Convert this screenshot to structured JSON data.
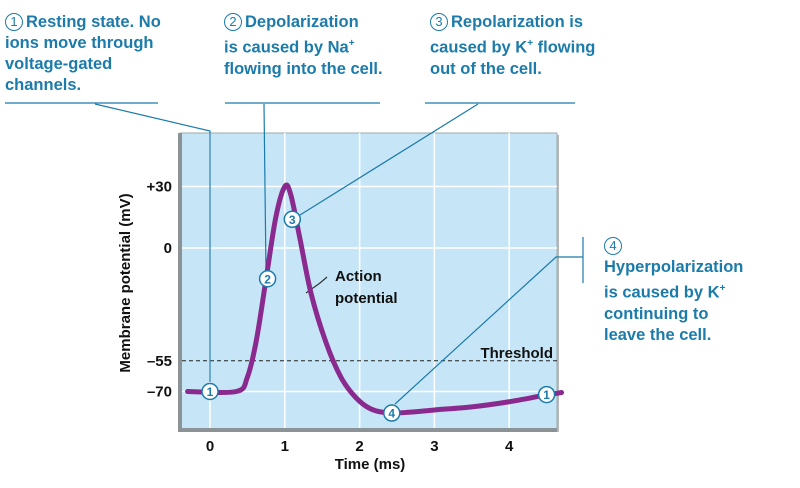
{
  "annotations": [
    {
      "number": "1",
      "title": "Resting state.",
      "text_lines": [
        "No",
        "ions move through",
        "voltage-gated",
        "channels."
      ]
    },
    {
      "number": "2",
      "title": "Depolarization",
      "text_lines": [
        "is caused by Na",
        "+",
        "flowing into the cell."
      ]
    },
    {
      "number": "3",
      "title": "Repolarization",
      "text_lines": [
        "is",
        "caused by K",
        "+",
        " flowing",
        "out of the cell."
      ]
    },
    {
      "number": "4",
      "title": "Hyperpolarization",
      "text_lines": [
        "is caused by K",
        "+",
        "continuing to",
        "leave the cell."
      ]
    }
  ],
  "colors": {
    "annotation_text": "#1b7bab",
    "plot_bg": "#c6e6f7",
    "curve": "#8a2a8e",
    "leader": "#1b7bab"
  },
  "chart_data": {
    "type": "line",
    "xlabel": "Time (ms)",
    "ylabel": "Membrane potential (mV)",
    "x_ticks": [
      "0",
      "1",
      "2",
      "3",
      "4"
    ],
    "y_ticks": [
      "+30",
      "0",
      "–55",
      "–70"
    ],
    "y_tick_values": [
      30,
      0,
      -55,
      -70
    ],
    "xlim": [
      -0.4,
      4.7
    ],
    "ylim": [
      -88,
      58
    ],
    "grid": true,
    "threshold": {
      "value": -55,
      "label": "Threshold"
    },
    "curve_label": [
      "Action",
      "potential"
    ],
    "series": [
      {
        "points": [
          [
            -0.3,
            -70
          ],
          [
            0.35,
            -70
          ],
          [
            0.5,
            -63
          ],
          [
            0.62,
            -45
          ],
          [
            0.75,
            -15
          ],
          [
            0.88,
            15
          ],
          [
            1.0,
            30
          ],
          [
            1.08,
            26
          ],
          [
            1.2,
            5
          ],
          [
            1.35,
            -22
          ],
          [
            1.55,
            -46
          ],
          [
            1.75,
            -63
          ],
          [
            1.95,
            -73
          ],
          [
            2.15,
            -78.5
          ],
          [
            2.4,
            -80.5
          ],
          [
            2.7,
            -80
          ],
          [
            3.0,
            -79
          ],
          [
            3.5,
            -77.5
          ],
          [
            4.0,
            -75
          ],
          [
            4.45,
            -72
          ],
          [
            4.7,
            -70.5
          ]
        ]
      }
    ],
    "markers": [
      {
        "label": "1",
        "x": 0,
        "y": -70
      },
      {
        "label": "2",
        "x": 0.77,
        "y": -15
      },
      {
        "label": "3",
        "x": 1.1,
        "y": 14
      },
      {
        "label": "4",
        "x": 2.43,
        "y": -80.5
      },
      {
        "label": "1",
        "x": 4.5,
        "y": -71.5
      }
    ]
  }
}
